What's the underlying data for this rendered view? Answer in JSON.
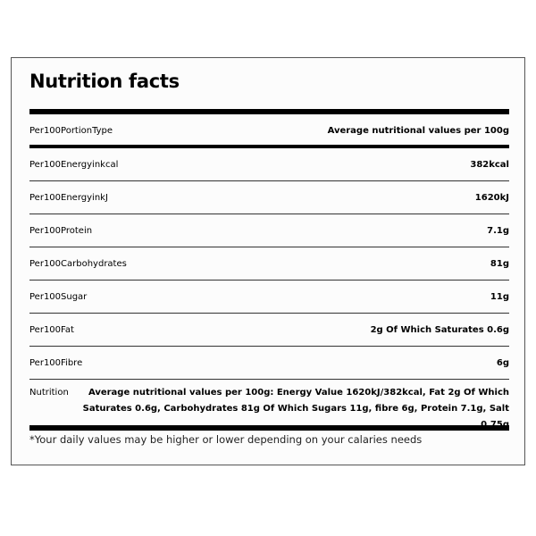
{
  "title": "Nutrition facts",
  "header_row": {
    "label": "Per100PortionType",
    "value": "Average nutritional values per 100g"
  },
  "rows": [
    {
      "label": "Per100Energyinkcal",
      "value": "382kcal"
    },
    {
      "label": "Per100EnergyinkJ",
      "value": "1620kJ"
    },
    {
      "label": "Per100Protein",
      "value": "7.1g"
    },
    {
      "label": "Per100Carbohydrates",
      "value": "81g"
    },
    {
      "label": "Per100Sugar",
      "value": "11g"
    },
    {
      "label": "Per100Fat",
      "value": "2g Of Which Saturates 0.6g"
    },
    {
      "label": "Per100Fibre",
      "value": "6g"
    }
  ],
  "nutrition": {
    "label": "Nutrition",
    "value": "Average nutritional values per 100g: Energy Value 1620kJ/382kcal, Fat 2g Of Which Saturates 0.6g, Carbohydrates 81g Of Which Sugars 11g, fibre 6g, Protein 7.1g, Salt 0.75g"
  },
  "footnote": "*Your daily values may be higher or lower depending on your calaries needs"
}
